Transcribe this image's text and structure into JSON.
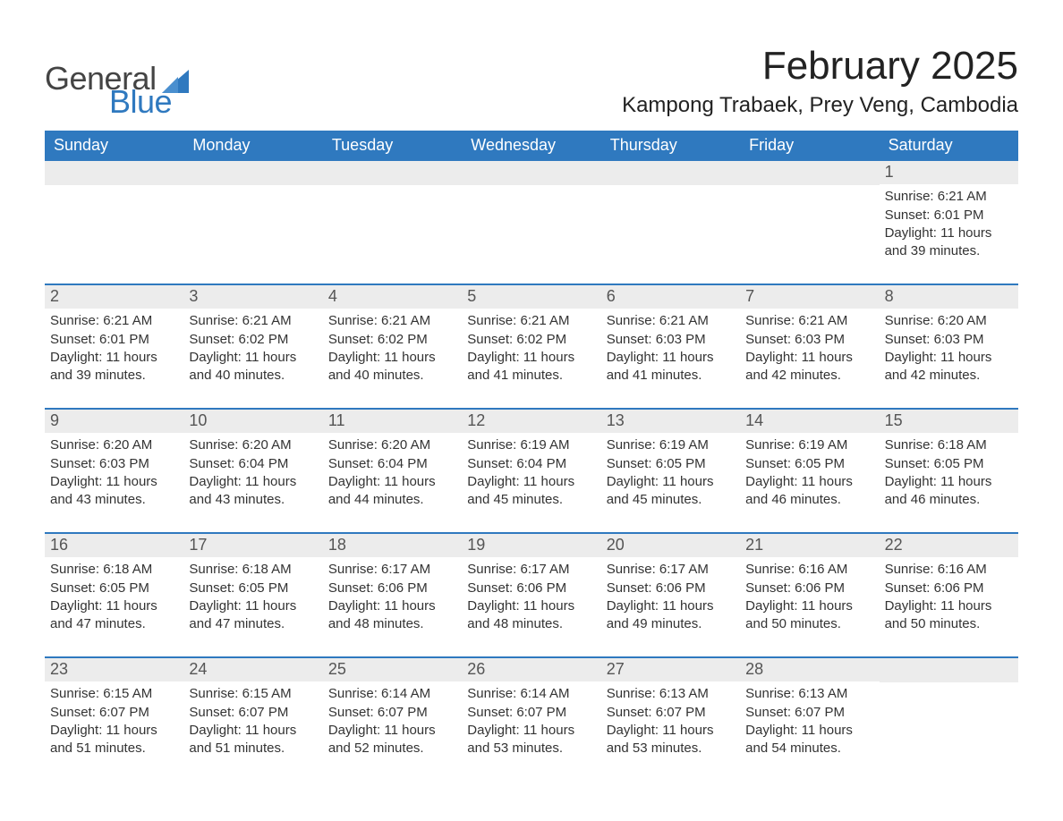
{
  "brand": {
    "general": "General",
    "blue": "Blue",
    "sail_color": "#2f79bf"
  },
  "title": "February 2025",
  "location": "Kampong Trabaek, Prey Veng, Cambodia",
  "colors": {
    "header_bg": "#2f79bf",
    "header_text": "#ffffff",
    "band_bg": "#ececec",
    "text": "#333333",
    "divider": "#2f79bf",
    "page_bg": "#ffffff"
  },
  "weekdays": [
    "Sunday",
    "Monday",
    "Tuesday",
    "Wednesday",
    "Thursday",
    "Friday",
    "Saturday"
  ],
  "weeks": [
    [
      {
        "day": "",
        "sunrise": "",
        "sunset": "",
        "daylight": ""
      },
      {
        "day": "",
        "sunrise": "",
        "sunset": "",
        "daylight": ""
      },
      {
        "day": "",
        "sunrise": "",
        "sunset": "",
        "daylight": ""
      },
      {
        "day": "",
        "sunrise": "",
        "sunset": "",
        "daylight": ""
      },
      {
        "day": "",
        "sunrise": "",
        "sunset": "",
        "daylight": ""
      },
      {
        "day": "",
        "sunrise": "",
        "sunset": "",
        "daylight": ""
      },
      {
        "day": "1",
        "sunrise": "Sunrise: 6:21 AM",
        "sunset": "Sunset: 6:01 PM",
        "daylight": "Daylight: 11 hours and 39 minutes."
      }
    ],
    [
      {
        "day": "2",
        "sunrise": "Sunrise: 6:21 AM",
        "sunset": "Sunset: 6:01 PM",
        "daylight": "Daylight: 11 hours and 39 minutes."
      },
      {
        "day": "3",
        "sunrise": "Sunrise: 6:21 AM",
        "sunset": "Sunset: 6:02 PM",
        "daylight": "Daylight: 11 hours and 40 minutes."
      },
      {
        "day": "4",
        "sunrise": "Sunrise: 6:21 AM",
        "sunset": "Sunset: 6:02 PM",
        "daylight": "Daylight: 11 hours and 40 minutes."
      },
      {
        "day": "5",
        "sunrise": "Sunrise: 6:21 AM",
        "sunset": "Sunset: 6:02 PM",
        "daylight": "Daylight: 11 hours and 41 minutes."
      },
      {
        "day": "6",
        "sunrise": "Sunrise: 6:21 AM",
        "sunset": "Sunset: 6:03 PM",
        "daylight": "Daylight: 11 hours and 41 minutes."
      },
      {
        "day": "7",
        "sunrise": "Sunrise: 6:21 AM",
        "sunset": "Sunset: 6:03 PM",
        "daylight": "Daylight: 11 hours and 42 minutes."
      },
      {
        "day": "8",
        "sunrise": "Sunrise: 6:20 AM",
        "sunset": "Sunset: 6:03 PM",
        "daylight": "Daylight: 11 hours and 42 minutes."
      }
    ],
    [
      {
        "day": "9",
        "sunrise": "Sunrise: 6:20 AM",
        "sunset": "Sunset: 6:03 PM",
        "daylight": "Daylight: 11 hours and 43 minutes."
      },
      {
        "day": "10",
        "sunrise": "Sunrise: 6:20 AM",
        "sunset": "Sunset: 6:04 PM",
        "daylight": "Daylight: 11 hours and 43 minutes."
      },
      {
        "day": "11",
        "sunrise": "Sunrise: 6:20 AM",
        "sunset": "Sunset: 6:04 PM",
        "daylight": "Daylight: 11 hours and 44 minutes."
      },
      {
        "day": "12",
        "sunrise": "Sunrise: 6:19 AM",
        "sunset": "Sunset: 6:04 PM",
        "daylight": "Daylight: 11 hours and 45 minutes."
      },
      {
        "day": "13",
        "sunrise": "Sunrise: 6:19 AM",
        "sunset": "Sunset: 6:05 PM",
        "daylight": "Daylight: 11 hours and 45 minutes."
      },
      {
        "day": "14",
        "sunrise": "Sunrise: 6:19 AM",
        "sunset": "Sunset: 6:05 PM",
        "daylight": "Daylight: 11 hours and 46 minutes."
      },
      {
        "day": "15",
        "sunrise": "Sunrise: 6:18 AM",
        "sunset": "Sunset: 6:05 PM",
        "daylight": "Daylight: 11 hours and 46 minutes."
      }
    ],
    [
      {
        "day": "16",
        "sunrise": "Sunrise: 6:18 AM",
        "sunset": "Sunset: 6:05 PM",
        "daylight": "Daylight: 11 hours and 47 minutes."
      },
      {
        "day": "17",
        "sunrise": "Sunrise: 6:18 AM",
        "sunset": "Sunset: 6:05 PM",
        "daylight": "Daylight: 11 hours and 47 minutes."
      },
      {
        "day": "18",
        "sunrise": "Sunrise: 6:17 AM",
        "sunset": "Sunset: 6:06 PM",
        "daylight": "Daylight: 11 hours and 48 minutes."
      },
      {
        "day": "19",
        "sunrise": "Sunrise: 6:17 AM",
        "sunset": "Sunset: 6:06 PM",
        "daylight": "Daylight: 11 hours and 48 minutes."
      },
      {
        "day": "20",
        "sunrise": "Sunrise: 6:17 AM",
        "sunset": "Sunset: 6:06 PM",
        "daylight": "Daylight: 11 hours and 49 minutes."
      },
      {
        "day": "21",
        "sunrise": "Sunrise: 6:16 AM",
        "sunset": "Sunset: 6:06 PM",
        "daylight": "Daylight: 11 hours and 50 minutes."
      },
      {
        "day": "22",
        "sunrise": "Sunrise: 6:16 AM",
        "sunset": "Sunset: 6:06 PM",
        "daylight": "Daylight: 11 hours and 50 minutes."
      }
    ],
    [
      {
        "day": "23",
        "sunrise": "Sunrise: 6:15 AM",
        "sunset": "Sunset: 6:07 PM",
        "daylight": "Daylight: 11 hours and 51 minutes."
      },
      {
        "day": "24",
        "sunrise": "Sunrise: 6:15 AM",
        "sunset": "Sunset: 6:07 PM",
        "daylight": "Daylight: 11 hours and 51 minutes."
      },
      {
        "day": "25",
        "sunrise": "Sunrise: 6:14 AM",
        "sunset": "Sunset: 6:07 PM",
        "daylight": "Daylight: 11 hours and 52 minutes."
      },
      {
        "day": "26",
        "sunrise": "Sunrise: 6:14 AM",
        "sunset": "Sunset: 6:07 PM",
        "daylight": "Daylight: 11 hours and 53 minutes."
      },
      {
        "day": "27",
        "sunrise": "Sunrise: 6:13 AM",
        "sunset": "Sunset: 6:07 PM",
        "daylight": "Daylight: 11 hours and 53 minutes."
      },
      {
        "day": "28",
        "sunrise": "Sunrise: 6:13 AM",
        "sunset": "Sunset: 6:07 PM",
        "daylight": "Daylight: 11 hours and 54 minutes."
      },
      {
        "day": "",
        "sunrise": "",
        "sunset": "",
        "daylight": ""
      }
    ]
  ]
}
